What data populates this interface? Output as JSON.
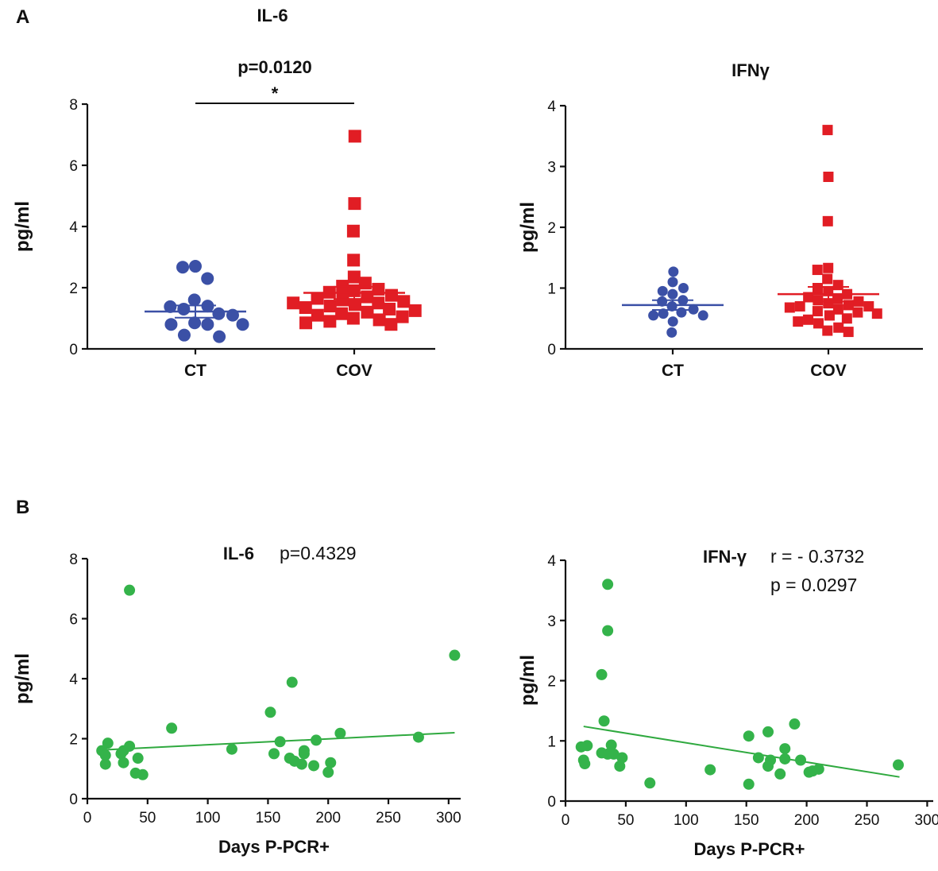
{
  "figure": {
    "panel_a_label": "A",
    "panel_b_label": "B"
  },
  "colors": {
    "ct": "#3b50a6",
    "cov": "#e11d24",
    "scatter": "#34b34a",
    "fit": "#2fa93f",
    "axis": "#111111"
  },
  "chart_data": [
    {
      "type": "scatter",
      "title": "IL-6",
      "ylabel": "pg/ml",
      "xlabel": "",
      "ylim": [
        0,
        8
      ],
      "yticks": [
        0,
        2,
        4,
        6,
        8
      ],
      "categories": [
        "CT",
        "COV"
      ],
      "significance": {
        "pvalue": "p=0.0120",
        "star": "*"
      },
      "series": [
        {
          "name": "CT",
          "marker": "circle",
          "mean": 1.22,
          "sem": 0.2,
          "values": [
            2.7,
            2.67,
            2.3,
            1.6,
            1.4,
            1.38,
            1.3,
            1.15,
            1.1,
            0.85,
            0.8,
            0.8,
            0.8,
            0.45,
            0.4
          ]
        },
        {
          "name": "COV",
          "marker": "square",
          "mean": 1.83,
          "sem": 0.2,
          "values": [
            6.95,
            4.75,
            3.85,
            2.9,
            2.35,
            2.15,
            2.05,
            1.95,
            1.9,
            1.85,
            1.75,
            1.7,
            1.65,
            1.6,
            1.55,
            1.5,
            1.5,
            1.45,
            1.4,
            1.35,
            1.3,
            1.25,
            1.2,
            1.15,
            1.1,
            1.05,
            1.0,
            0.95,
            0.9,
            0.85,
            0.8
          ]
        }
      ]
    },
    {
      "type": "scatter",
      "title": "IFNγ",
      "ylabel": "pg/ml",
      "xlabel": "",
      "ylim": [
        0,
        4
      ],
      "yticks": [
        0,
        1,
        2,
        3,
        4
      ],
      "categories": [
        "CT",
        "COV"
      ],
      "series": [
        {
          "name": "CT",
          "marker": "circle",
          "mean": 0.72,
          "sem": 0.08,
          "values": [
            1.27,
            1.1,
            1.0,
            0.95,
            0.9,
            0.8,
            0.78,
            0.7,
            0.65,
            0.6,
            0.58,
            0.55,
            0.55,
            0.45,
            0.27
          ]
        },
        {
          "name": "COV",
          "marker": "square",
          "mean": 0.9,
          "sem": 0.12,
          "values": [
            3.6,
            2.83,
            2.1,
            1.33,
            1.3,
            1.15,
            1.05,
            1.0,
            0.95,
            0.9,
            0.85,
            0.82,
            0.8,
            0.78,
            0.75,
            0.72,
            0.7,
            0.7,
            0.68,
            0.65,
            0.62,
            0.6,
            0.58,
            0.55,
            0.5,
            0.48,
            0.45,
            0.42,
            0.35,
            0.3,
            0.28
          ]
        }
      ]
    },
    {
      "type": "scatter",
      "title": "IL-6",
      "stats": [
        "p=0.4329"
      ],
      "ylabel": "pg/ml",
      "xlabel": "Days P-PCR+",
      "xlim": [
        0,
        310
      ],
      "ylim": [
        0,
        8
      ],
      "xticks": [
        0,
        50,
        100,
        150,
        200,
        250,
        300
      ],
      "yticks": [
        0,
        2,
        4,
        6,
        8
      ],
      "trendline": {
        "x": [
          10,
          305
        ],
        "y": [
          1.62,
          2.2
        ]
      },
      "points": [
        [
          35,
          6.95
        ],
        [
          305,
          4.78
        ],
        [
          170,
          3.88
        ],
        [
          152,
          2.88
        ],
        [
          70,
          2.35
        ],
        [
          210,
          2.18
        ],
        [
          275,
          2.05
        ],
        [
          17,
          1.85
        ],
        [
          35,
          1.75
        ],
        [
          12,
          1.6
        ],
        [
          30,
          1.6
        ],
        [
          160,
          1.9
        ],
        [
          190,
          1.95
        ],
        [
          120,
          1.65
        ],
        [
          180,
          1.6
        ],
        [
          15,
          1.45
        ],
        [
          28,
          1.5
        ],
        [
          155,
          1.5
        ],
        [
          180,
          1.5
        ],
        [
          42,
          1.35
        ],
        [
          168,
          1.35
        ],
        [
          15,
          1.15
        ],
        [
          30,
          1.2
        ],
        [
          178,
          1.15
        ],
        [
          188,
          1.1
        ],
        [
          202,
          1.2
        ],
        [
          40,
          0.85
        ],
        [
          46,
          0.8
        ],
        [
          200,
          0.88
        ],
        [
          172,
          1.25
        ]
      ]
    },
    {
      "type": "scatter",
      "title": "IFN-γ",
      "stats": [
        "r  = - 0.3732",
        "p =   0.0297"
      ],
      "ylabel": "pg/ml",
      "xlabel": "Days P-PCR+",
      "xlim": [
        0,
        305
      ],
      "ylim": [
        0,
        4
      ],
      "xticks": [
        0,
        50,
        100,
        150,
        200,
        250,
        300
      ],
      "yticks": [
        0,
        1,
        2,
        3,
        4
      ],
      "trendline": {
        "x": [
          15,
          277
        ],
        "y": [
          1.24,
          0.4
        ]
      },
      "points": [
        [
          35,
          3.6
        ],
        [
          35,
          2.83
        ],
        [
          30,
          2.1
        ],
        [
          32,
          1.33
        ],
        [
          190,
          1.28
        ],
        [
          168,
          1.15
        ],
        [
          152,
          1.08
        ],
        [
          18,
          0.92
        ],
        [
          13,
          0.9
        ],
        [
          38,
          0.93
        ],
        [
          182,
          0.87
        ],
        [
          30,
          0.8
        ],
        [
          35,
          0.78
        ],
        [
          40,
          0.78
        ],
        [
          47,
          0.72
        ],
        [
          160,
          0.72
        ],
        [
          170,
          0.68
        ],
        [
          182,
          0.7
        ],
        [
          195,
          0.68
        ],
        [
          15,
          0.68
        ],
        [
          16,
          0.62
        ],
        [
          168,
          0.58
        ],
        [
          178,
          0.45
        ],
        [
          120,
          0.52
        ],
        [
          45,
          0.58
        ],
        [
          202,
          0.48
        ],
        [
          205,
          0.5
        ],
        [
          210,
          0.53
        ],
        [
          276,
          0.6
        ],
        [
          70,
          0.3
        ],
        [
          152,
          0.28
        ]
      ]
    }
  ]
}
